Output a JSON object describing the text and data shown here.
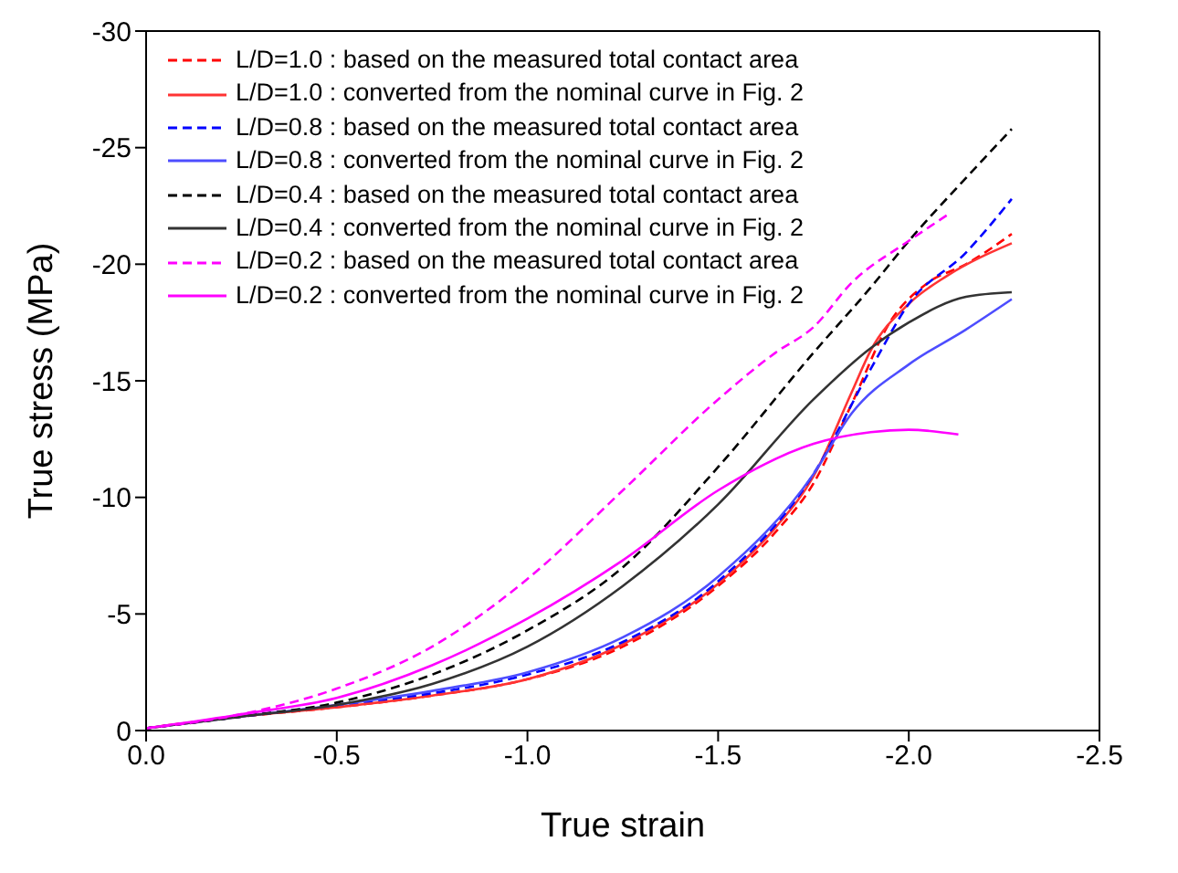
{
  "chart_data": {
    "type": "line",
    "xlabel": "True strain",
    "ylabel": "True stress (MPa)",
    "xlim": [
      0,
      -2.5
    ],
    "ylim": [
      0,
      -30
    ],
    "xticks": [
      {
        "value": 0,
        "label": "0.0"
      },
      -0.5,
      {
        "value": -1,
        "label": "-1.0"
      },
      -1.5,
      {
        "value": -2,
        "label": "-2.0"
      },
      -2.5
    ],
    "yticks": [
      0,
      -5,
      -10,
      -15,
      -20,
      -25,
      -30
    ],
    "grid": false,
    "legend": "top left",
    "marker": "none",
    "series": [
      {
        "name": "L/D=1.0 : based on the measured total contact area",
        "color": "#ff0000",
        "line_style": "dashed",
        "x": [
          0,
          -0.25,
          -0.5,
          -0.75,
          -1,
          -1.25,
          -1.5,
          -1.65,
          -1.75,
          -1.85,
          -1.95,
          -2.05,
          -2.15,
          -2.27
        ],
        "values": [
          -0.1,
          -0.6,
          -1,
          -1.5,
          -2.2,
          -3.6,
          -6.2,
          -8.5,
          -10.6,
          -14,
          -17.5,
          -19.2,
          -20,
          -21.3
        ]
      },
      {
        "name": "L/D=1.0 : converted from the nominal curve in Fig. 2",
        "color": "#ff3333",
        "line_style": "solid",
        "x": [
          0,
          -0.25,
          -0.5,
          -0.75,
          -1,
          -1.25,
          -1.5,
          -1.65,
          -1.75,
          -1.85,
          -1.9,
          -2,
          -2.1,
          -2.27
        ],
        "values": [
          -0.1,
          -0.6,
          -1,
          -1.5,
          -2.2,
          -3.7,
          -6.3,
          -8.7,
          -10.9,
          -14.5,
          -16.3,
          -18.3,
          -19.5,
          -20.9
        ]
      },
      {
        "name": "L/D=0.8 : based on the measured total contact area",
        "color": "#0000ff",
        "line_style": "dashed",
        "x": [
          0,
          -0.25,
          -0.5,
          -0.75,
          -1,
          -1.25,
          -1.5,
          -1.75,
          -1.9,
          -2,
          -2.15,
          -2.27
        ],
        "values": [
          -0.1,
          -0.6,
          -1.1,
          -1.6,
          -2.4,
          -3.8,
          -6.4,
          -11,
          -15.5,
          -18.3,
          -20.5,
          -22.8
        ]
      },
      {
        "name": "L/D=0.8 : converted from the nominal curve in Fig. 2",
        "color": "#4d4dff",
        "line_style": "solid",
        "x": [
          0,
          -0.25,
          -0.5,
          -0.75,
          -1,
          -1.25,
          -1.5,
          -1.75,
          -1.85,
          -2,
          -2.15,
          -2.27
        ],
        "values": [
          -0.1,
          -0.6,
          -1.1,
          -1.7,
          -2.5,
          -4,
          -6.6,
          -11,
          -13.6,
          -15.7,
          -17.2,
          -18.5
        ]
      },
      {
        "name": "L/D=0.4 : based on the measured total contact area",
        "color": "#000000",
        "line_style": "dashed",
        "x": [
          0,
          -0.25,
          -0.5,
          -0.75,
          -1,
          -1.25,
          -1.5,
          -1.75,
          -1.9,
          -2,
          -2.15,
          -2.27
        ],
        "values": [
          -0.1,
          -0.6,
          -1.2,
          -2.4,
          -4.3,
          -7,
          -11.3,
          -16.2,
          -19,
          -21,
          -23.7,
          -25.8
        ]
      },
      {
        "name": "L/D=0.4 : converted from the nominal curve in Fig. 2",
        "color": "#333333",
        "line_style": "solid",
        "x": [
          0,
          -0.25,
          -0.5,
          -0.75,
          -1,
          -1.25,
          -1.5,
          -1.75,
          -1.9,
          -2,
          -2.15,
          -2.27
        ],
        "values": [
          -0.1,
          -0.6,
          -1.1,
          -2,
          -3.6,
          -6.2,
          -9.7,
          -14.2,
          -16.4,
          -17.5,
          -18.6,
          -18.8
        ]
      },
      {
        "name": "L/D=0.2 : based on the measured total contact area",
        "color": "#ff00ff",
        "line_style": "dashed",
        "x": [
          0,
          -0.25,
          -0.5,
          -0.75,
          -1,
          -1.25,
          -1.5,
          -1.65,
          -1.75,
          -1.85,
          -2,
          -2.1
        ],
        "values": [
          -0.1,
          -0.7,
          -1.8,
          -3.6,
          -6.5,
          -10.3,
          -14.2,
          -16.2,
          -17.3,
          -19.2,
          -21,
          -22.1
        ]
      },
      {
        "name": "L/D=0.2 : converted from the nominal curve in Fig. 2",
        "color": "#ff00ff",
        "line_style": "solid",
        "x": [
          0,
          -0.25,
          -0.5,
          -0.75,
          -1,
          -1.25,
          -1.5,
          -1.75,
          -1.9,
          -2,
          -2.13
        ],
        "values": [
          -0.1,
          -0.7,
          -1.4,
          -2.8,
          -4.8,
          -7.3,
          -10.3,
          -12.3,
          -12.8,
          -12.9,
          -12.7
        ]
      }
    ]
  }
}
